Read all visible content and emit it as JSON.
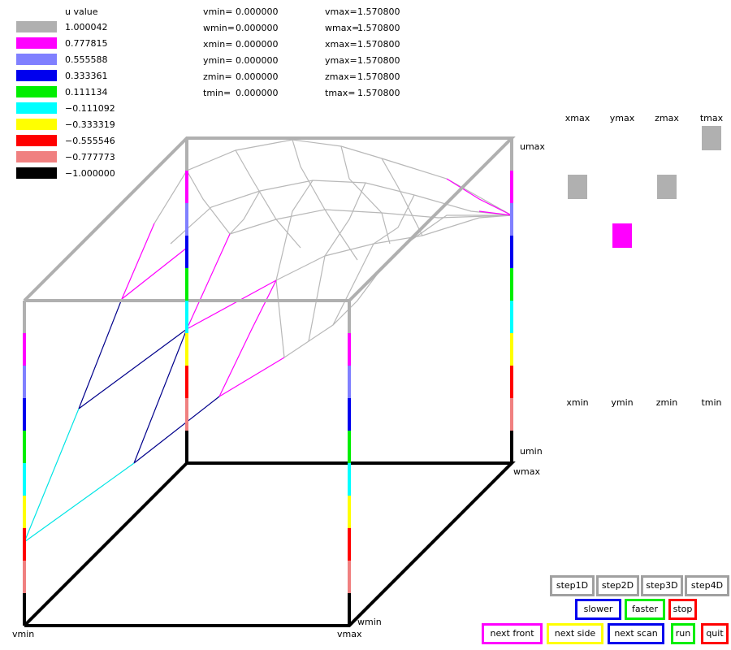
{
  "legend": {
    "title": "u value",
    "items": [
      {
        "label": "1.000042",
        "color": "#b0b0b0"
      },
      {
        "label": "0.777815",
        "color": "#ff00ff"
      },
      {
        "label": "0.555588",
        "color": "#8080ff"
      },
      {
        "label": "0.333361",
        "color": "#0000ee"
      },
      {
        "label": "0.111134",
        "color": "#00ee00"
      },
      {
        "label": "−0.111092",
        "color": "#00ffff"
      },
      {
        "label": "−0.333319",
        "color": "#ffff00"
      },
      {
        "label": "−0.555546",
        "color": "#ff0000"
      },
      {
        "label": "−0.777773",
        "color": "#f08080"
      },
      {
        "label": "−1.000000",
        "color": "#000000"
      }
    ]
  },
  "ranges": [
    {
      "min_name": "vmin=",
      "min": "0.000000",
      "max_name": "vmax=",
      "max": "1.570800"
    },
    {
      "min_name": "wmin=",
      "min": "0.000000",
      "max_name": "wmax=",
      "max": "1.570800"
    },
    {
      "min_name": "xmin=",
      "min": "0.000000",
      "max_name": "xmax=",
      "max": "1.570800"
    },
    {
      "min_name": "ymin=",
      "min": "0.000000",
      "max_name": "ymax=",
      "max": "1.570800"
    },
    {
      "min_name": "zmin=",
      "min": "0.000000",
      "max_name": "zmax=",
      "max": "1.570800"
    },
    {
      "min_name": "tmin=",
      "min": "0.000000",
      "max_name": "tmax=",
      "max": "1.570800"
    }
  ],
  "axis_labels": {
    "umax": "umax",
    "umin": "umin",
    "wmax": "wmax",
    "wmin": "wmin",
    "vmin": "vmin",
    "vmax": "vmax"
  },
  "sliders": {
    "max_labels": [
      "xmax",
      "ymax",
      "zmax",
      "tmax"
    ],
    "min_labels": [
      "xmin",
      "ymin",
      "zmin",
      "tmin"
    ]
  },
  "buttons": [
    {
      "label": "step1D",
      "color": "#a0a0a0"
    },
    {
      "label": "step2D",
      "color": "#a0a0a0"
    },
    {
      "label": "step3D",
      "color": "#a0a0a0"
    },
    {
      "label": "step4D",
      "color": "#a0a0a0"
    },
    {
      "label": "slower",
      "color": "#0000ee"
    },
    {
      "label": "faster",
      "color": "#00ee00"
    },
    {
      "label": "stop",
      "color": "#ff0000"
    },
    {
      "label": "next front",
      "color": "#ff00ff"
    },
    {
      "label": "next side",
      "color": "#ffff00"
    },
    {
      "label": "next scan",
      "color": "#0000ee"
    },
    {
      "label": "run",
      "color": "#00ee00"
    },
    {
      "label": "quit",
      "color": "#ff0000"
    }
  ]
}
